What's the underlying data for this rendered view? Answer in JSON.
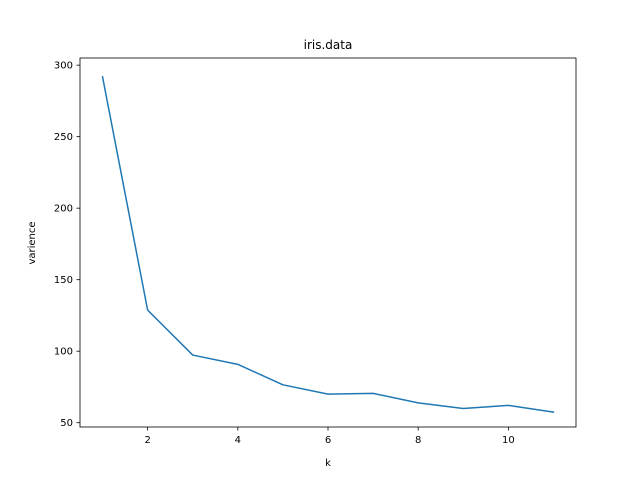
{
  "chart_data": {
    "type": "line",
    "title": "iris.data",
    "xlabel": "k",
    "ylabel": "varience",
    "xlim": [
      0.5,
      11.5
    ],
    "ylim": [
      47,
      305
    ],
    "xticks": [
      2,
      4,
      6,
      8,
      10
    ],
    "yticks": [
      50,
      100,
      150,
      200,
      250,
      300
    ],
    "grid": false,
    "series": [
      {
        "color": "#1f77b4",
        "x": [
          1,
          2,
          3,
          4,
          5,
          6,
          7,
          8,
          9,
          10,
          11
        ],
        "y": [
          291.8,
          128.7,
          97.3,
          90.8,
          76.5,
          70.0,
          70.5,
          63.9,
          59.9,
          62.1,
          57.4
        ]
      }
    ]
  }
}
